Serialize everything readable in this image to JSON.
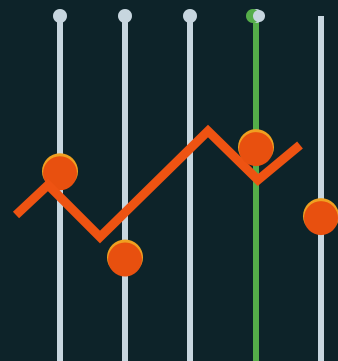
{
  "colors": {
    "background": "#0d2329",
    "track": "#c7d6df",
    "track_active": "#55ad49",
    "knob": "#e8500f",
    "knob_highlight": "#f0a020",
    "line": "#ee5312"
  },
  "sliders": [
    {
      "name": "slider-1",
      "level": 0.55,
      "active": false
    },
    {
      "name": "slider-2",
      "level": 0.3,
      "active": false
    },
    {
      "name": "slider-3",
      "level": null,
      "active": false
    },
    {
      "name": "slider-4",
      "level": 0.62,
      "active": true
    },
    {
      "name": "slider-5",
      "level": 0.42,
      "active": false
    }
  ],
  "icon": "equalizer-sliders-icon"
}
